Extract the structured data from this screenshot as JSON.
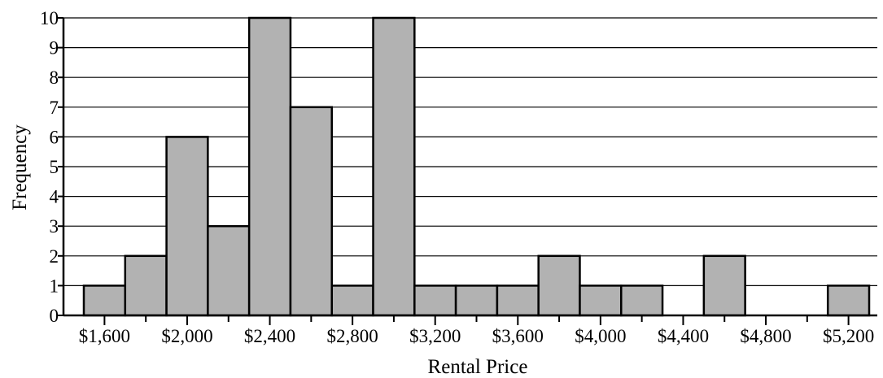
{
  "chart_data": {
    "type": "bar",
    "xlabel": "Rental Price",
    "ylabel": "Frequency",
    "bin_edges": [
      1500,
      1700,
      1900,
      2100,
      2300,
      2500,
      2700,
      2900,
      3100,
      3300,
      3500,
      3700,
      3900,
      4100,
      4300,
      4500,
      4700,
      4900,
      5100,
      5300
    ],
    "values": [
      1,
      2,
      6,
      3,
      10,
      7,
      1,
      10,
      1,
      1,
      1,
      2,
      1,
      1,
      0,
      2,
      0,
      0,
      1
    ],
    "x_ticks": [
      {
        "value": 1600,
        "label": "$1,600"
      },
      {
        "value": 2000,
        "label": "$2,000"
      },
      {
        "value": 2400,
        "label": "$2,400"
      },
      {
        "value": 2800,
        "label": "$2,800"
      },
      {
        "value": 3200,
        "label": "$3,200"
      },
      {
        "value": 3600,
        "label": "$3,600"
      },
      {
        "value": 4000,
        "label": "$4,000"
      },
      {
        "value": 4400,
        "label": "$4,400"
      },
      {
        "value": 4800,
        "label": "$4,800"
      },
      {
        "value": 5200,
        "label": "$5,200"
      }
    ],
    "y_ticks": [
      0,
      1,
      2,
      3,
      4,
      5,
      6,
      7,
      8,
      9,
      10
    ],
    "ylim": [
      0,
      10
    ],
    "grid": "horizontal"
  }
}
